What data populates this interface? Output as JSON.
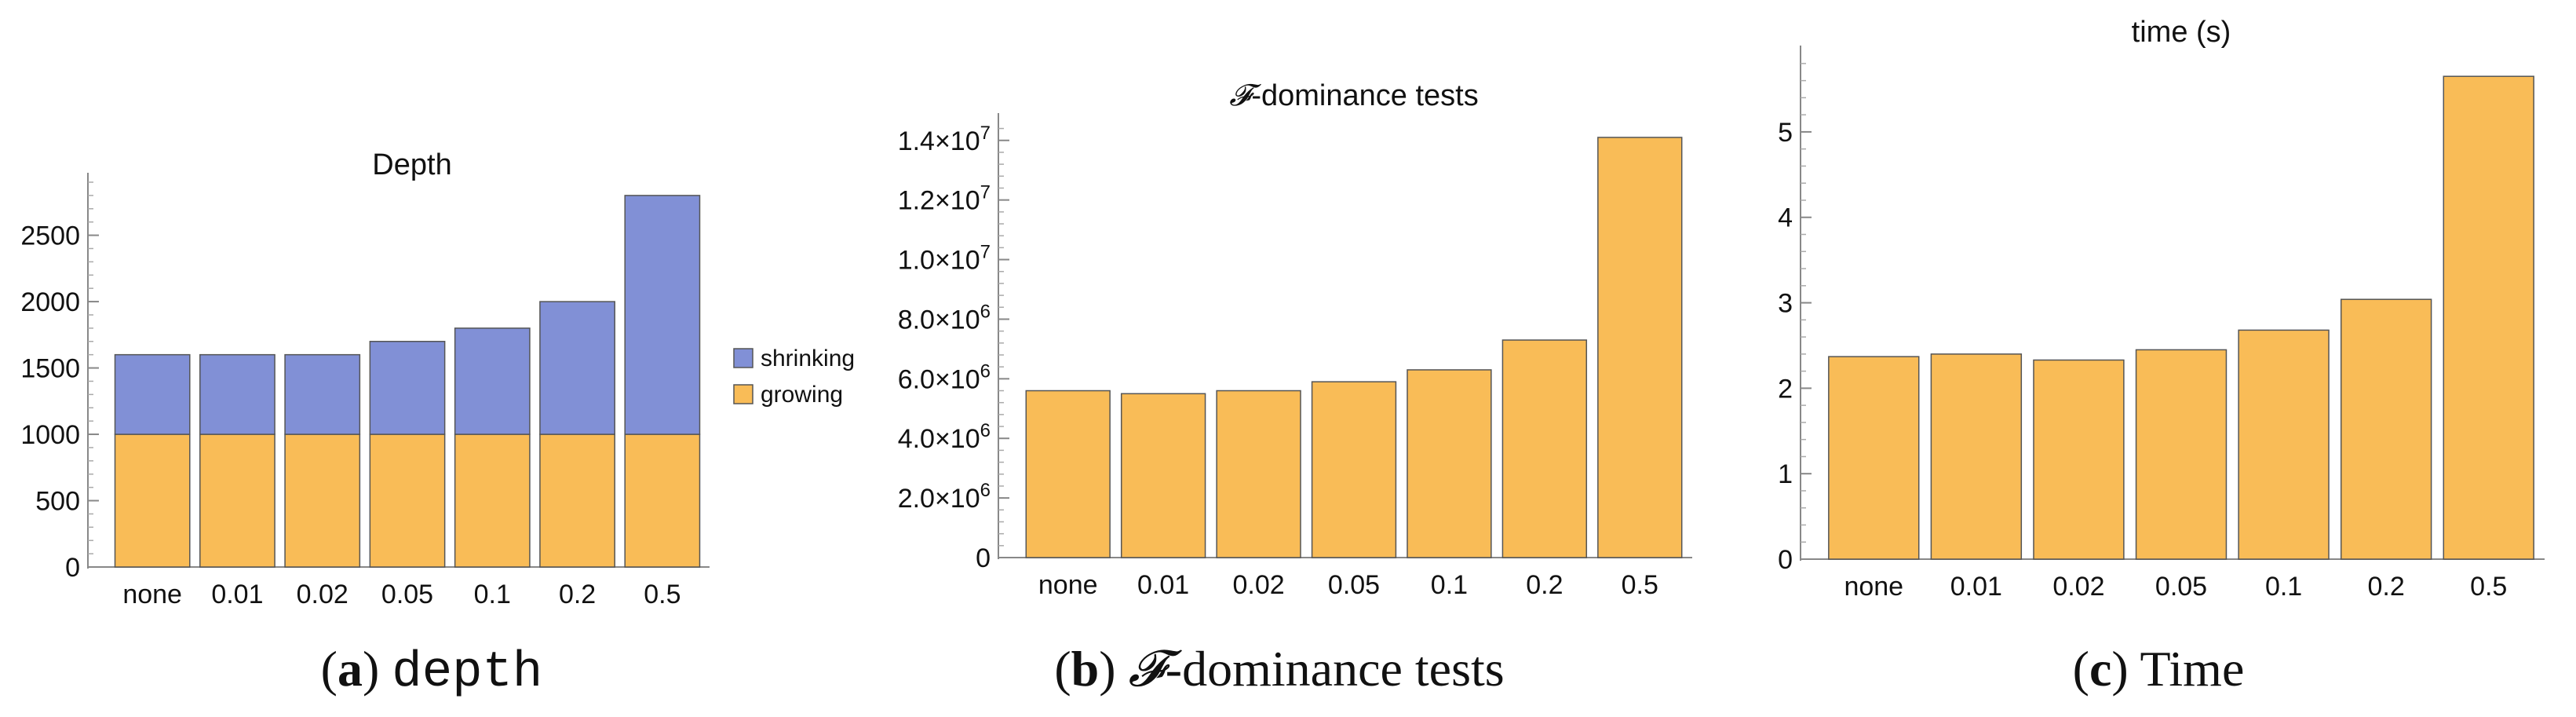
{
  "colors": {
    "growing": "#f9bc57",
    "shrinking": "#8190d6",
    "bar_stroke": "#555555"
  },
  "chart_data": [
    {
      "type": "bar",
      "stacked": true,
      "title": "Depth",
      "categories": [
        "none",
        "0.01",
        "0.02",
        "0.05",
        "0.1",
        "0.2",
        "0.5"
      ],
      "series": [
        {
          "name": "growing",
          "values": [
            1000,
            1000,
            1000,
            1000,
            1000,
            1000,
            1000
          ]
        },
        {
          "name": "shrinking",
          "values": [
            600,
            600,
            600,
            700,
            800,
            1000,
            1800
          ]
        }
      ],
      "ylim": [
        0,
        2900
      ],
      "yticks": [
        0,
        500,
        1000,
        1500,
        2000,
        2500
      ],
      "ytick_labels": [
        "0",
        "500",
        "1000",
        "1500",
        "2000",
        "2500"
      ],
      "legend": [
        "shrinking",
        "growing"
      ],
      "legend_position": "right",
      "caption": {
        "letter": "a",
        "text": "depth"
      }
    },
    {
      "type": "bar",
      "title": "-dominance tests",
      "title_symbol": "𝓕",
      "categories": [
        "none",
        "0.01",
        "0.02",
        "0.05",
        "0.1",
        "0.2",
        "0.5"
      ],
      "series": [
        {
          "name": "growing",
          "values": [
            5600000,
            5500000,
            5600000,
            5900000,
            6300000,
            7300000,
            14100000
          ]
        }
      ],
      "ylim": [
        0,
        14600000
      ],
      "yticks": [
        0,
        2000000,
        4000000,
        6000000,
        8000000,
        10000000,
        12000000,
        14000000
      ],
      "ytick_labels": [
        {
          "mantissa": "0",
          "exp": ""
        },
        {
          "mantissa": "2.0",
          "exp": "6"
        },
        {
          "mantissa": "4.0",
          "exp": "6"
        },
        {
          "mantissa": "6.0",
          "exp": "6"
        },
        {
          "mantissa": "8.0",
          "exp": "6"
        },
        {
          "mantissa": "1.0",
          "exp": "7"
        },
        {
          "mantissa": "1.2",
          "exp": "7"
        },
        {
          "mantissa": "1.4",
          "exp": "7"
        }
      ],
      "caption": {
        "letter": "b",
        "symbol": "𝓕",
        "text": "-dominance tests"
      }
    },
    {
      "type": "bar",
      "title": "time (s)",
      "categories": [
        "none",
        "0.01",
        "0.02",
        "0.05",
        "0.1",
        "0.2",
        "0.5"
      ],
      "series": [
        {
          "name": "growing",
          "values": [
            2.37,
            2.4,
            2.33,
            2.45,
            2.68,
            3.04,
            5.65
          ]
        }
      ],
      "ylim": [
        0,
        5.9
      ],
      "yticks": [
        0,
        1,
        2,
        3,
        4,
        5
      ],
      "ytick_labels": [
        "0",
        "1",
        "2",
        "3",
        "4",
        "5"
      ],
      "caption": {
        "letter": "c",
        "text": "Time"
      }
    }
  ]
}
